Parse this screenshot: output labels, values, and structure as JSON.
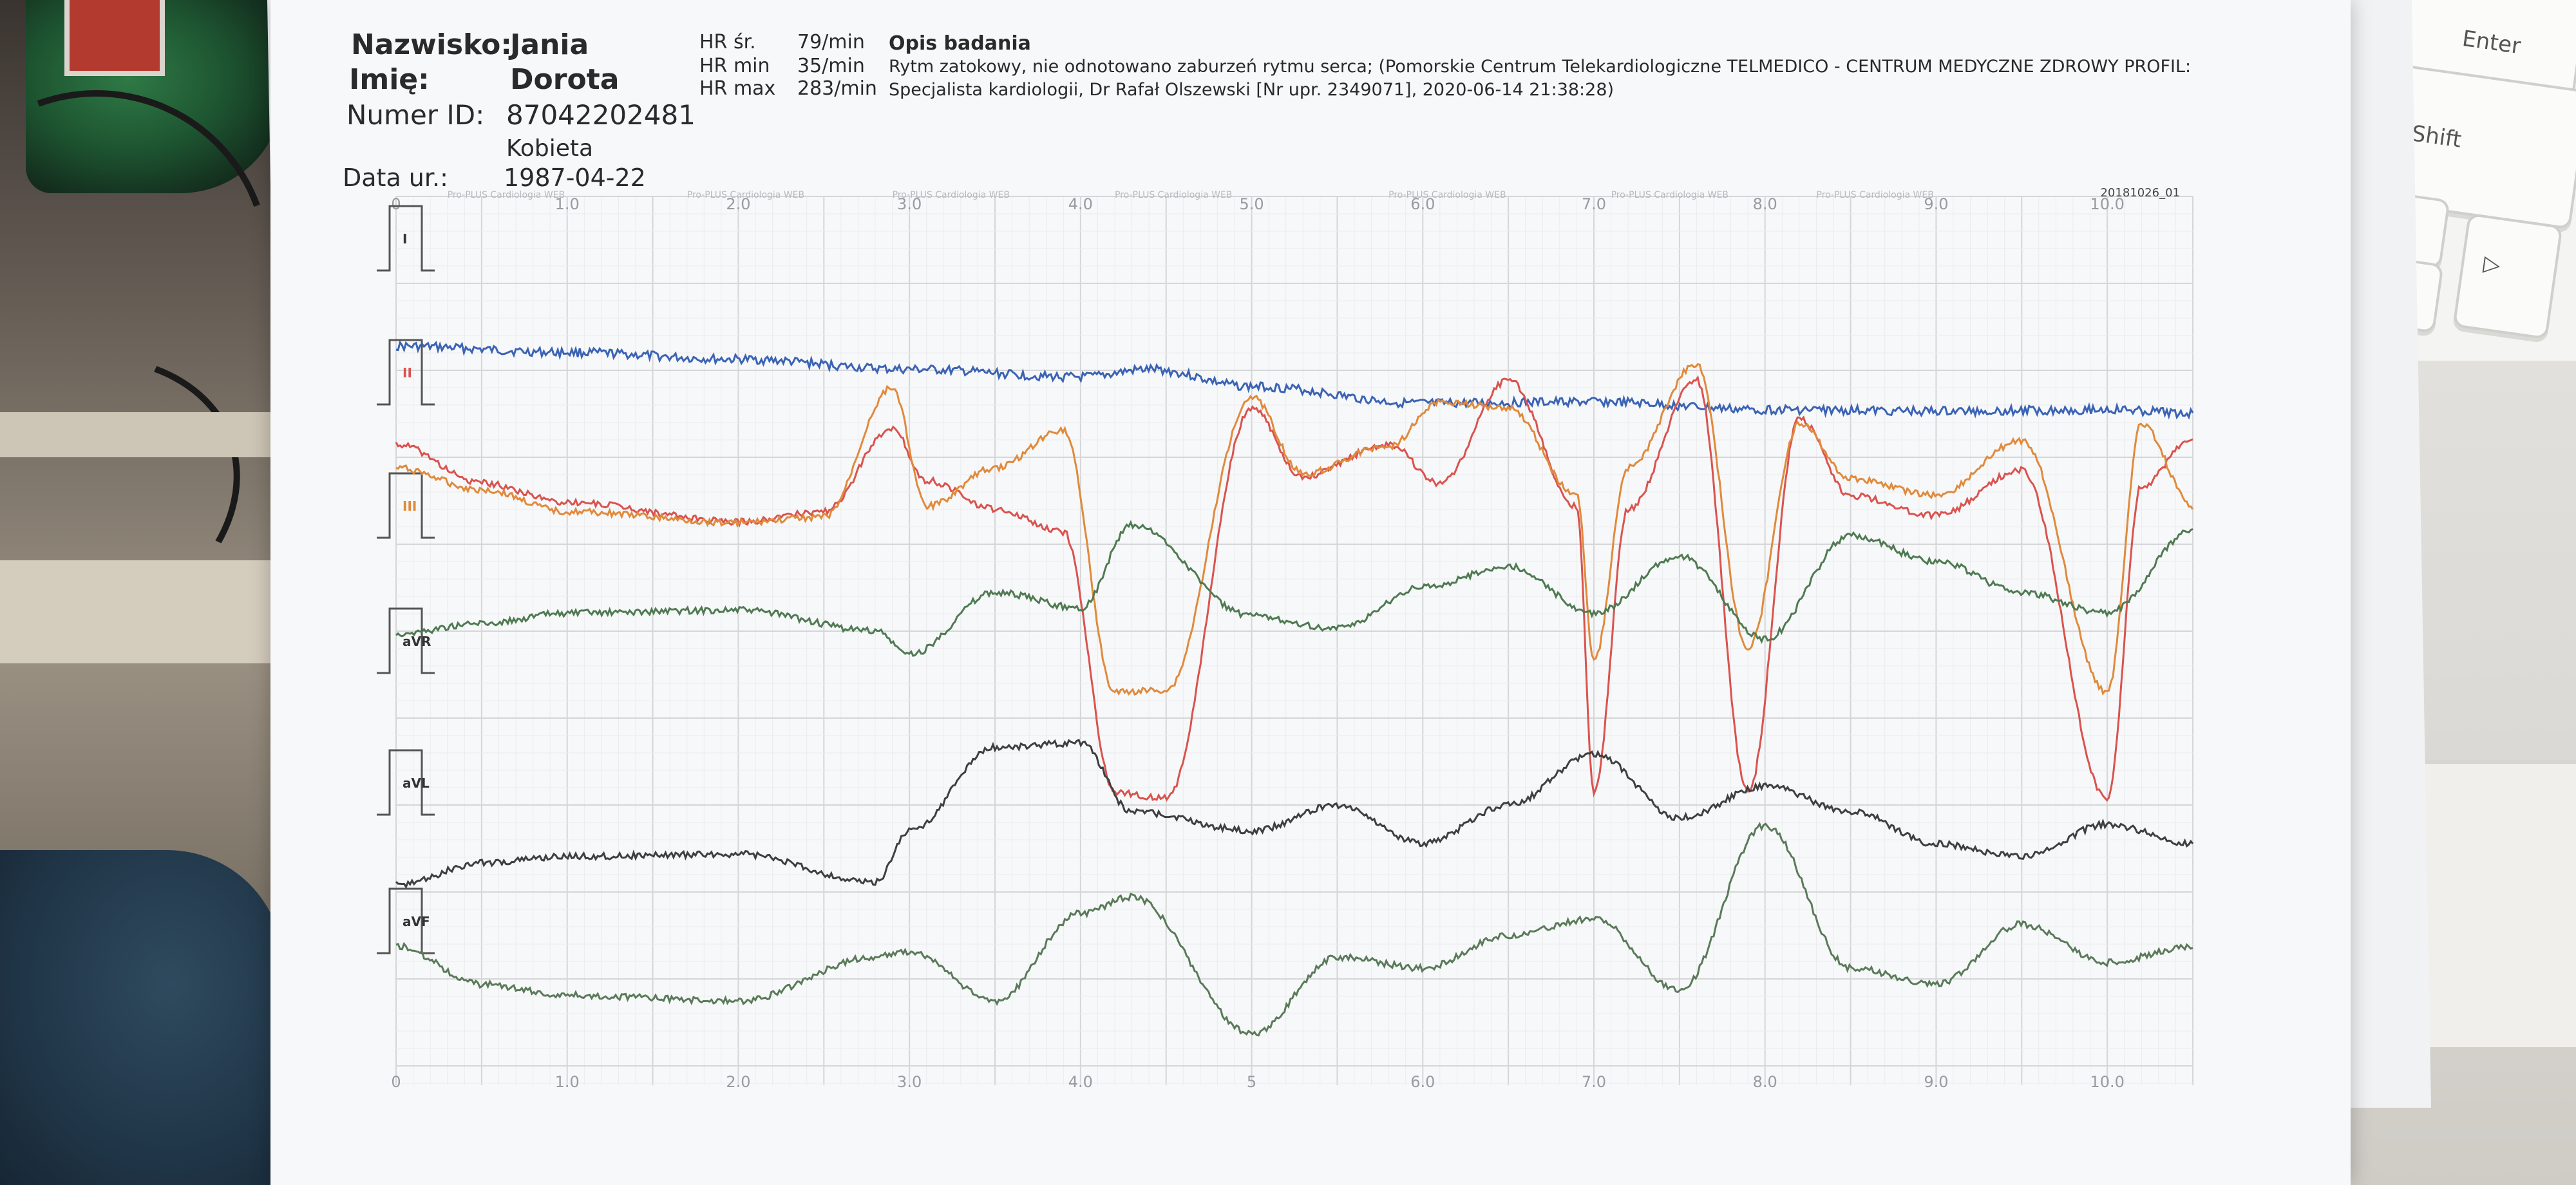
{
  "patient": {
    "surname_label": "Nazwisko:",
    "surname_value": "Jania",
    "firstname_label": "Imię:",
    "firstname_value": "Dorota",
    "id_label": "Numer ID:",
    "id_value": "87042202481",
    "sex_value": "Kobieta",
    "dob_label": "Data ur.:",
    "dob_value": "1987-04-22"
  },
  "heart_rate": {
    "avg_label": "HR śr.",
    "avg_value": "79/min",
    "min_label": "HR min",
    "min_value": "35/min",
    "max_label": "HR max",
    "max_value": "283/min"
  },
  "description": {
    "heading": "Opis badania",
    "line1": "Rytm zatokowy, nie odnotowano zaburzeń rytmu serca; (Pomorskie Centrum Telekardiologiczne TELMEDICO - CENTRUM MEDYCZNE ZDROWY PROFIL:",
    "line2": "Specjalista kardiologii, Dr Rafał Olszewski [Nr upr. 2349071], 2020-06-14 21:38:28)"
  },
  "record_code": "20181026_01",
  "watermark": "Pro-PLUS Cardiologia WEB",
  "keyboard": {
    "enter_label": "Enter",
    "shift_label": "Shift"
  },
  "chart_data": {
    "type": "line",
    "title": "",
    "xlabel": "",
    "ylabel": "",
    "x_ticks_top": [
      "0",
      "1.0",
      "2.0",
      "3.0",
      "4.0",
      "5.0",
      "6.0",
      "7.0",
      "8.0",
      "9.0",
      "10.0"
    ],
    "x_ticks_bottom": [
      "0",
      "1.0",
      "2.0",
      "3.0",
      "4.0",
      "5",
      "6.0",
      "7.0",
      "8.0",
      "9.0",
      "10.0"
    ],
    "xlim": [
      0,
      10.5
    ],
    "leads": [
      "I",
      "II",
      "III",
      "aVR",
      "aVL",
      "aVF"
    ],
    "grid": true,
    "series": [
      {
        "color": "#3b63b5",
        "x": [
          0,
          1,
          2,
          3,
          4,
          4.4,
          5,
          6,
          7,
          8,
          9,
          10,
          10.5
        ],
        "y": [
          0.52,
          0.44,
          0.35,
          0.22,
          0.12,
          0.22,
          0.0,
          -0.22,
          -0.2,
          -0.3,
          -0.32,
          -0.3,
          -0.35
        ]
      },
      {
        "color": "#d9534f",
        "x": [
          0,
          0.5,
          1,
          2,
          2.5,
          2.9,
          3.1,
          3.5,
          3.9,
          4.2,
          4.5,
          5,
          5.3,
          5.8,
          6.1,
          6.5,
          6.9,
          7.0,
          7.2,
          7.6,
          7.9,
          8.2,
          8.5,
          9,
          9.5,
          10.0,
          10.2,
          10.5
        ],
        "y": [
          0.7,
          0.4,
          0.25,
          0.1,
          0.18,
          0.82,
          0.42,
          0.2,
          0.02,
          -2.0,
          -2.05,
          0.98,
          0.45,
          0.7,
          0.4,
          1.2,
          0.22,
          -2.0,
          0.2,
          1.2,
          -2.0,
          0.9,
          0.3,
          0.15,
          0.5,
          -2.05,
          0.38,
          0.75
        ]
      },
      {
        "color": "#e08a3c",
        "x": [
          0,
          0.5,
          1,
          2,
          2.5,
          2.9,
          3.1,
          3.5,
          3.9,
          4.2,
          4.5,
          5,
          5.3,
          5.8,
          6.1,
          6.5,
          6.9,
          7.0,
          7.2,
          7.6,
          7.9,
          8.2,
          8.5,
          9,
          9.5,
          10.0,
          10.2,
          10.5
        ],
        "y": [
          0.55,
          0.35,
          0.15,
          0.05,
          0.1,
          1.28,
          0.2,
          0.55,
          0.9,
          -1.5,
          -1.48,
          1.2,
          0.5,
          0.75,
          1.15,
          1.1,
          0.3,
          -1.2,
          0.55,
          1.5,
          -1.1,
          0.95,
          0.45,
          0.3,
          0.8,
          -1.5,
          0.95,
          0.2
        ]
      },
      {
        "color": "#4f7a52",
        "x": [
          0,
          0.5,
          1,
          2,
          2.8,
          3.0,
          3.5,
          4.0,
          4.3,
          5,
          5.5,
          6.0,
          6.5,
          7.0,
          7.5,
          8.0,
          8.5,
          9.0,
          9.5,
          10.0,
          10.5
        ],
        "y": [
          -0.15,
          -0.05,
          0.05,
          0.08,
          -0.12,
          -0.35,
          0.25,
          0.1,
          0.9,
          0.02,
          -0.1,
          0.3,
          0.5,
          0.05,
          0.6,
          -0.2,
          0.8,
          0.55,
          0.25,
          0.05,
          0.85
        ]
      },
      {
        "color": "#3f3f3f",
        "x": [
          0,
          0.5,
          1,
          2,
          2.8,
          3.0,
          3.5,
          4.0,
          4.3,
          5,
          5.5,
          6.0,
          6.5,
          7.0,
          7.5,
          8.0,
          8.5,
          9.0,
          9.5,
          10.0,
          10.5
        ],
        "y": [
          -0.12,
          0.05,
          0.1,
          0.12,
          -0.1,
          0.3,
          0.95,
          0.98,
          0.45,
          0.3,
          0.5,
          0.2,
          0.5,
          0.9,
          0.4,
          0.65,
          0.45,
          0.2,
          0.1,
          0.35,
          0.2
        ]
      },
      {
        "color": "#5a7a5a",
        "x": [
          0,
          0.5,
          1,
          2,
          2.8,
          3.0,
          3.5,
          4.0,
          4.3,
          5,
          5.5,
          6.0,
          6.5,
          7.0,
          7.5,
          8.0,
          8.5,
          9.0,
          9.5,
          10.0,
          10.5
        ],
        "y": [
          0.3,
          -0.05,
          -0.15,
          -0.2,
          0.2,
          0.25,
          -0.2,
          0.6,
          0.75,
          -0.5,
          0.2,
          0.1,
          0.4,
          0.55,
          -0.1,
          1.4,
          0.1,
          -0.05,
          0.5,
          0.15,
          0.3
        ]
      }
    ]
  }
}
